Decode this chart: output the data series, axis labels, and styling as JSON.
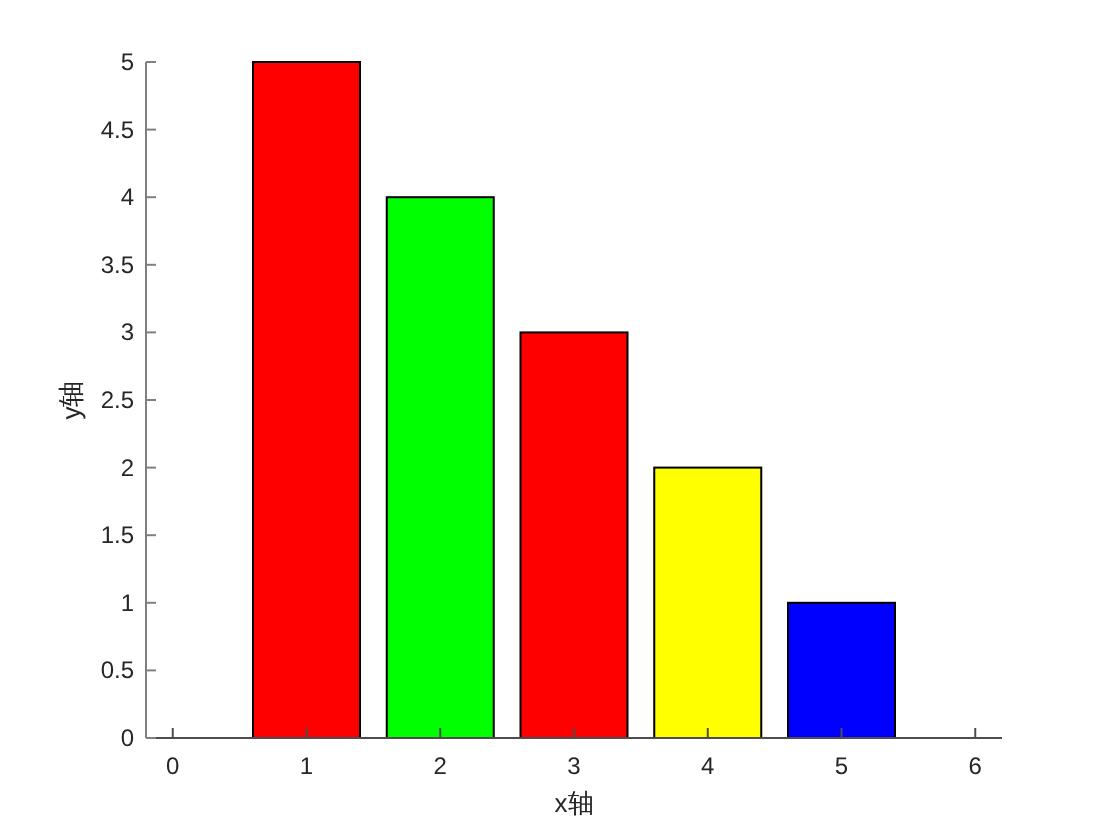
{
  "chart_data": {
    "type": "bar",
    "xlabel": "x轴",
    "ylabel": "y轴",
    "x": [
      1,
      2,
      3,
      4,
      5
    ],
    "values": [
      5,
      4,
      3,
      2,
      1
    ],
    "colors": [
      "#ff0000",
      "#00ff00",
      "#ff0000",
      "#ffff00",
      "#0000ff"
    ],
    "xlim": [
      -0.2,
      6.2
    ],
    "xticks": [
      0,
      1,
      2,
      3,
      4,
      5,
      6
    ],
    "ylim": [
      0,
      5
    ],
    "yticks": [
      0,
      0.5,
      1,
      1.5,
      2,
      2.5,
      3,
      3.5,
      4,
      4.5,
      5
    ],
    "grid": false
  }
}
